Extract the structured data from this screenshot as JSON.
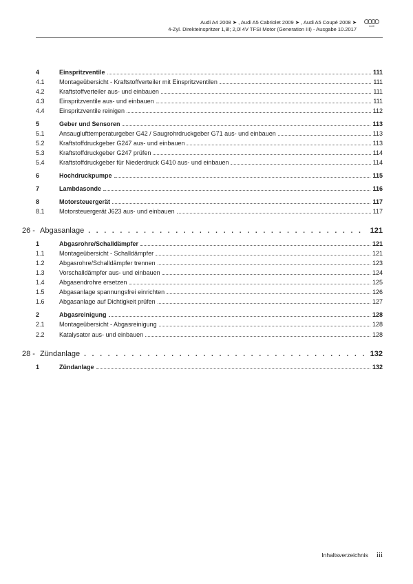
{
  "header": {
    "line1": "Audi A4 2008 ➤ , Audi A5 Cabriolet 2009 ➤ , Audi A5 Coupé 2008 ➤",
    "line2": "4-Zyl. Direkteinspritzer 1,8l; 2,0l 4V TFSI Motor (Generation III) - Ausgabe 10.2017",
    "logo_label": "Audi"
  },
  "chapter_dots": ". . . . . . . . . . . . . . . . . . . . . . . . . . . . . . . . . . . . . . . . . . .",
  "sections": [
    {
      "rows": [
        {
          "num": "4",
          "title": "Einspritzventile",
          "page": "111",
          "bold": true
        },
        {
          "num": "4.1",
          "title": "Montageübersicht - Kraftstoffverteiler mit Einspritzventilen",
          "page": "111"
        },
        {
          "num": "4.2",
          "title": "Kraftstoffverteiler aus- und einbauen",
          "page": "111"
        },
        {
          "num": "4.3",
          "title": "Einspritzventile aus- und einbauen",
          "page": "111"
        },
        {
          "num": "4.4",
          "title": "Einspritzventile reinigen",
          "page": "112"
        },
        {
          "num": "5",
          "title": "Geber und Sensoren",
          "page": "113",
          "bold": true
        },
        {
          "num": "5.1",
          "title": "Ansauglufttemperaturgeber G42 / Saugrohrdruckgeber G71 aus- und einbauen",
          "page": "113"
        },
        {
          "num": "5.2",
          "title": "Kraftstoffdruckgeber G247 aus- und einbauen",
          "page": "113"
        },
        {
          "num": "5.3",
          "title": "Kraftstoffdruckgeber G247 prüfen",
          "page": "114"
        },
        {
          "num": "5.4",
          "title": "Kraftstoffdruckgeber für Niederdruck G410 aus- und einbauen",
          "page": "114"
        },
        {
          "num": "6",
          "title": "Hochdruckpumpe",
          "page": "115",
          "bold": true
        },
        {
          "num": "7",
          "title": "Lambdasonde",
          "page": "116",
          "bold": true
        },
        {
          "num": "8",
          "title": "Motorsteuergerät",
          "page": "117",
          "bold": true
        },
        {
          "num": "8.1",
          "title": "Motorsteuergerät J623 aus- und einbauen",
          "page": "117"
        }
      ]
    },
    {
      "chapter": {
        "num": "26 -",
        "title": "Abgasanlage",
        "page": "121"
      },
      "rows": [
        {
          "num": "1",
          "title": "Abgasrohre/Schalldämpfer",
          "page": "121",
          "bold": true
        },
        {
          "num": "1.1",
          "title": "Montageübersicht - Schalldämpfer",
          "page": "121"
        },
        {
          "num": "1.2",
          "title": "Abgasrohre/Schalldämpfer trennen",
          "page": "123"
        },
        {
          "num": "1.3",
          "title": "Vorschalldämpfer aus- und einbauen",
          "page": "124"
        },
        {
          "num": "1.4",
          "title": "Abgasendrohre ersetzen",
          "page": "125"
        },
        {
          "num": "1.5",
          "title": "Abgasanlage spannungsfrei einrichten",
          "page": "126"
        },
        {
          "num": "1.6",
          "title": "Abgasanlage auf Dichtigkeit prüfen",
          "page": "127"
        },
        {
          "num": "2",
          "title": "Abgasreinigung",
          "page": "128",
          "bold": true
        },
        {
          "num": "2.1",
          "title": "Montageübersicht - Abgasreinigung",
          "page": "128"
        },
        {
          "num": "2.2",
          "title": "Katalysator aus- und einbauen",
          "page": "128"
        }
      ]
    },
    {
      "chapter": {
        "num": "28 -",
        "title": "Zündanlage",
        "page": "132"
      },
      "rows": [
        {
          "num": "1",
          "title": "Zündanlage",
          "page": "132",
          "bold": true
        }
      ]
    }
  ],
  "footer": {
    "label": "Inhaltsverzeichnis",
    "page": "iii"
  }
}
